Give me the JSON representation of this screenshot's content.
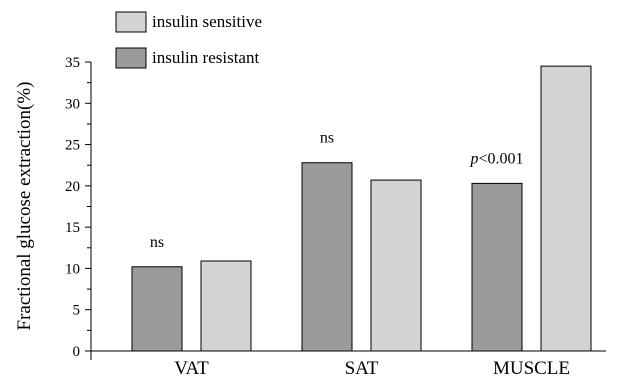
{
  "chart_data": {
    "type": "bar",
    "categories": [
      "VAT",
      "SAT",
      "MUSCLE"
    ],
    "series": [
      {
        "name": "insulin resistant",
        "values": [
          10.2,
          22.8,
          20.3
        ],
        "color": "#9b9b9b"
      },
      {
        "name": "insulin sensitive",
        "values": [
          10.9,
          20.7,
          34.5
        ],
        "color": "#d3d3d3"
      }
    ],
    "title": "",
    "xlabel": "",
    "ylabel": "Fractional glucose extraction(%)",
    "ylim": [
      0,
      35
    ],
    "yticks": [
      0,
      5,
      10,
      15,
      20,
      25,
      30,
      35
    ],
    "ytick_labels": [
      "0",
      "5",
      "10",
      "15",
      "20",
      "25",
      "30",
      "35"
    ],
    "legend": {
      "placement": "top-left",
      "entries": [
        {
          "label": "insulin sensitive",
          "color": "#d3d3d3"
        },
        {
          "label": "insulin resistant",
          "color": "#9b9b9b"
        }
      ]
    },
    "annotations": [
      {
        "category": "VAT",
        "text": "ns",
        "italic_prefix": ""
      },
      {
        "category": "SAT",
        "text": "ns",
        "italic_prefix": ""
      },
      {
        "category": "MUSCLE",
        "text": "<0.001",
        "italic_prefix": "p"
      }
    ],
    "grid": false
  }
}
